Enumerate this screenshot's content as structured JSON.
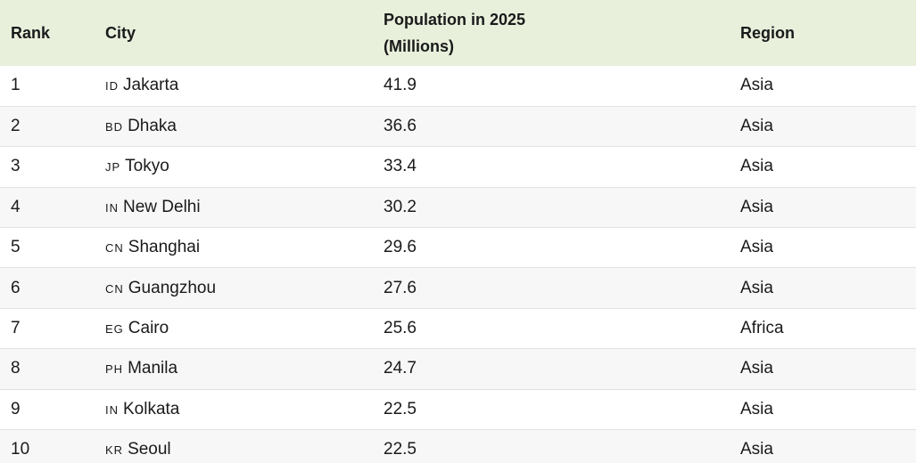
{
  "chart_data": {
    "type": "table",
    "columns": [
      "Rank",
      "City",
      "Population in 2025 (Millions)",
      "Region"
    ],
    "header": {
      "rank": "Rank",
      "city": "City",
      "population_line1": "Population in 2025",
      "population_line2": "(Millions)",
      "region": "Region"
    },
    "rows": [
      {
        "rank": "1",
        "flag": "ID",
        "city": "Jakarta",
        "population": "41.9",
        "region": "Asia"
      },
      {
        "rank": "2",
        "flag": "BD",
        "city": "Dhaka",
        "population": "36.6",
        "region": "Asia"
      },
      {
        "rank": "3",
        "flag": "JP",
        "city": "Tokyo",
        "population": "33.4",
        "region": "Asia"
      },
      {
        "rank": "4",
        "flag": "IN",
        "city": "New Delhi",
        "population": "30.2",
        "region": "Asia"
      },
      {
        "rank": "5",
        "flag": "CN",
        "city": "Shanghai",
        "population": "29.6",
        "region": "Asia"
      },
      {
        "rank": "6",
        "flag": "CN",
        "city": "Guangzhou",
        "population": "27.6",
        "region": "Asia"
      },
      {
        "rank": "7",
        "flag": "EG",
        "city": "Cairo",
        "population": "25.6",
        "region": "Africa"
      },
      {
        "rank": "8",
        "flag": "PH",
        "city": "Manila",
        "population": "24.7",
        "region": "Asia"
      },
      {
        "rank": "9",
        "flag": "IN",
        "city": "Kolkata",
        "population": "22.5",
        "region": "Asia"
      },
      {
        "rank": "10",
        "flag": "KR",
        "city": "Seoul",
        "population": "22.5",
        "region": "Asia"
      }
    ]
  }
}
